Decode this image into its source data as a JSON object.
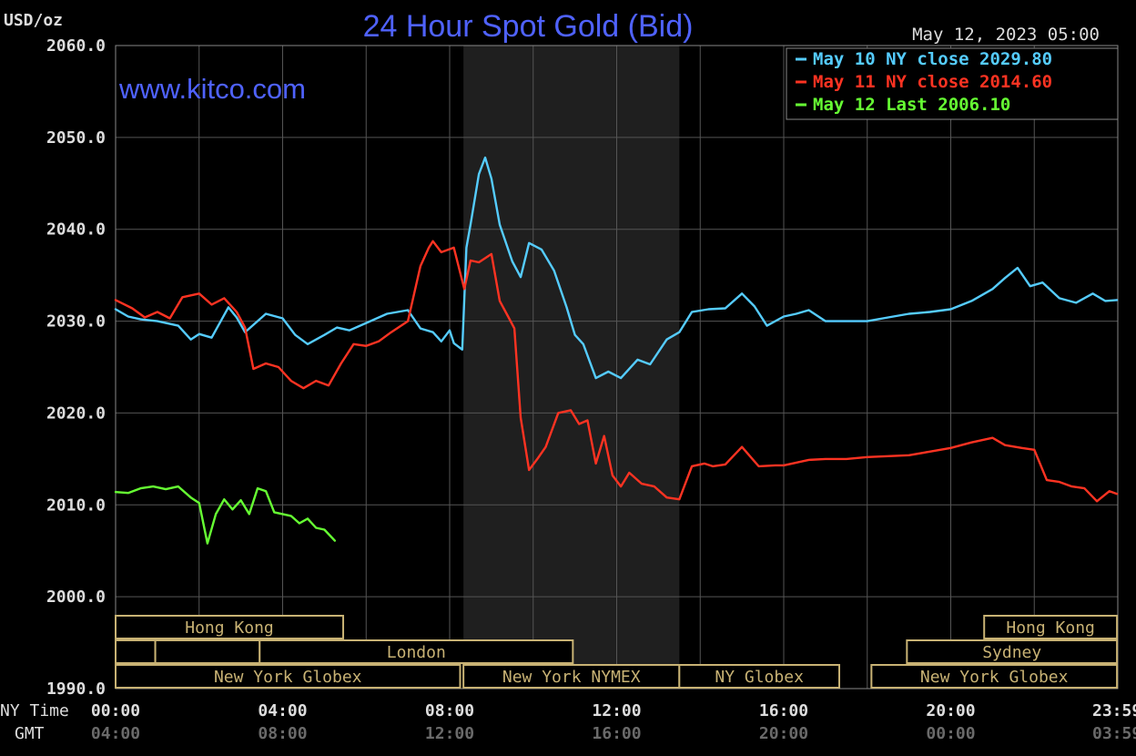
{
  "chart_data": {
    "type": "line",
    "title": "24 Hour Spot Gold (Bid)",
    "watermark": "www.kitco.com",
    "timestamp": "May 12, 2023 05:00",
    "ylabel": "USD/oz",
    "ylim": [
      1990,
      2060
    ],
    "y_ticks": [
      "2060.0",
      "2050.0",
      "2040.0",
      "2030.0",
      "2020.0",
      "2010.0",
      "2000.0",
      "1990.0"
    ],
    "xlim": [
      0,
      24
    ],
    "x_row_labels": [
      "NY Time",
      "GMT"
    ],
    "x_ticks_ny": [
      "00:00",
      "04:00",
      "08:00",
      "12:00",
      "16:00",
      "20:00",
      "23:59"
    ],
    "x_ticks_gmt": [
      "04:00",
      "08:00",
      "12:00",
      "16:00",
      "20:00",
      "00:00",
      "03:59"
    ],
    "x_tick_hours": [
      0,
      4,
      8,
      12,
      16,
      20,
      23.98
    ],
    "grid": true,
    "legend_position": "top-right",
    "shaded_range_hours": [
      8.33,
      13.5
    ],
    "series": [
      {
        "name": "May 10 NY close 2029.80",
        "color": "#55ccff",
        "x": [
          0,
          0.3,
          0.6,
          1.0,
          1.5,
          1.8,
          2.0,
          2.3,
          2.7,
          2.9,
          3.1,
          3.3,
          3.6,
          4.0,
          4.3,
          4.6,
          5.0,
          5.3,
          5.6,
          6.0,
          6.5,
          7.0,
          7.3,
          7.6,
          7.8,
          8.0,
          8.1,
          8.3,
          8.4,
          8.5,
          8.7,
          8.85,
          9.0,
          9.2,
          9.5,
          9.7,
          9.9,
          10.2,
          10.5,
          10.8,
          11.0,
          11.2,
          11.5,
          11.8,
          12.1,
          12.5,
          12.8,
          13.2,
          13.5,
          13.8,
          14.2,
          14.6,
          15.0,
          15.3,
          15.6,
          16.0,
          16.3,
          16.6,
          17.0,
          17.5,
          18.0,
          18.5,
          19.0,
          19.5,
          20.0,
          20.5,
          21.0,
          21.3,
          21.6,
          21.9,
          22.2,
          22.6,
          23.0,
          23.4,
          23.7,
          23.98
        ],
        "values": [
          2031.3,
          2030.5,
          2030.2,
          2030.0,
          2029.5,
          2028.0,
          2028.6,
          2028.2,
          2031.5,
          2030.4,
          2028.8,
          2029.6,
          2030.8,
          2030.3,
          2028.5,
          2027.5,
          2028.5,
          2029.3,
          2029.0,
          2029.8,
          2030.8,
          2031.2,
          2029.2,
          2028.8,
          2027.8,
          2029.0,
          2027.6,
          2026.9,
          2038.0,
          2040.5,
          2046.0,
          2047.8,
          2045.5,
          2040.5,
          2036.5,
          2034.8,
          2038.5,
          2037.8,
          2035.5,
          2031.5,
          2028.5,
          2027.5,
          2023.8,
          2024.5,
          2023.8,
          2025.8,
          2025.3,
          2028.0,
          2028.8,
          2031.0,
          2031.3,
          2031.4,
          2033.0,
          2031.6,
          2029.5,
          2030.5,
          2030.8,
          2031.2,
          2030.0,
          2030.0,
          2030.0,
          2030.4,
          2030.8,
          2031.0,
          2031.3,
          2032.2,
          2033.5,
          2034.7,
          2035.8,
          2033.8,
          2034.2,
          2032.5,
          2032.0,
          2033.0,
          2032.2,
          2032.3
        ]
      },
      {
        "name": "May 11 NY close 2014.60",
        "color": "#ff3322",
        "x": [
          0,
          0.4,
          0.7,
          1.0,
          1.3,
          1.6,
          2.0,
          2.3,
          2.6,
          2.9,
          3.1,
          3.3,
          3.6,
          3.9,
          4.2,
          4.5,
          4.8,
          5.1,
          5.4,
          5.7,
          6.0,
          6.3,
          6.6,
          7.0,
          7.3,
          7.5,
          7.6,
          7.8,
          8.1,
          8.35,
          8.5,
          8.7,
          9.0,
          9.2,
          9.4,
          9.55,
          9.7,
          9.9,
          10.1,
          10.3,
          10.6,
          10.9,
          11.1,
          11.3,
          11.5,
          11.7,
          11.9,
          12.1,
          12.3,
          12.6,
          12.9,
          13.2,
          13.5,
          13.8,
          14.1,
          14.3,
          14.6,
          15.0,
          15.4,
          15.8,
          16.0,
          16.3,
          16.6,
          17.0,
          17.5,
          18.0,
          18.5,
          19.0,
          19.5,
          20.0,
          20.5,
          21.0,
          21.3,
          21.7,
          22.0,
          22.3,
          22.6,
          22.9,
          23.2,
          23.5,
          23.8,
          23.98
        ],
        "values": [
          2032.3,
          2031.4,
          2030.4,
          2031.0,
          2030.3,
          2032.6,
          2033.0,
          2031.8,
          2032.5,
          2031.0,
          2029.3,
          2024.8,
          2025.4,
          2025.0,
          2023.5,
          2022.7,
          2023.5,
          2023.0,
          2025.4,
          2027.5,
          2027.3,
          2027.8,
          2028.8,
          2030.0,
          2036.0,
          2038.0,
          2038.7,
          2037.5,
          2038.0,
          2033.5,
          2036.6,
          2036.4,
          2037.3,
          2032.2,
          2030.5,
          2029.2,
          2019.5,
          2013.8,
          2015.0,
          2016.3,
          2020.0,
          2020.3,
          2018.8,
          2019.2,
          2014.5,
          2017.5,
          2013.2,
          2012.0,
          2013.5,
          2012.3,
          2012.0,
          2010.8,
          2010.6,
          2014.2,
          2014.5,
          2014.2,
          2014.4,
          2016.3,
          2014.2,
          2014.3,
          2014.3,
          2014.6,
          2014.9,
          2015.0,
          2015.0,
          2015.2,
          2015.3,
          2015.4,
          2015.8,
          2016.2,
          2016.8,
          2017.3,
          2016.5,
          2016.2,
          2016.0,
          2012.7,
          2012.5,
          2012.0,
          2011.8,
          2010.4,
          2011.5,
          2011.2
        ]
      },
      {
        "name": "May 12 Last 2006.10",
        "color": "#66ff33",
        "x": [
          0,
          0.3,
          0.6,
          0.9,
          1.2,
          1.5,
          1.8,
          2.0,
          2.2,
          2.4,
          2.6,
          2.8,
          3.0,
          3.2,
          3.4,
          3.6,
          3.8,
          4.0,
          4.2,
          4.4,
          4.6,
          4.8,
          5.0,
          5.25
        ],
        "values": [
          2011.4,
          2011.3,
          2011.8,
          2012.0,
          2011.7,
          2012.0,
          2010.8,
          2010.2,
          2005.8,
          2009.0,
          2010.6,
          2009.5,
          2010.5,
          2009.0,
          2011.8,
          2011.5,
          2009.2,
          2009.0,
          2008.8,
          2008.0,
          2008.5,
          2007.5,
          2007.3,
          2006.1
        ]
      }
    ],
    "sessions": [
      {
        "label": "Hong Kong",
        "row": 0,
        "start": 0,
        "end": 5.45
      },
      {
        "label": "Hong Kong",
        "row": 0,
        "start": 20.8,
        "end": 23.98
      },
      {
        "label": "",
        "row": 1,
        "start": 0,
        "end": 0.95
      },
      {
        "label": "",
        "row": 1,
        "start": 0.95,
        "end": 3.45
      },
      {
        "label": "London",
        "row": 1,
        "start": 3.45,
        "end": 10.95
      },
      {
        "label": "Sydney",
        "row": 1,
        "start": 18.95,
        "end": 23.98
      },
      {
        "label": "New York Globex",
        "row": 2,
        "start": 0,
        "end": 8.25
      },
      {
        "label": "New York NYMEX",
        "row": 2,
        "start": 8.33,
        "end": 13.5
      },
      {
        "label": "NY Globex",
        "row": 2,
        "start": 13.5,
        "end": 17.33
      },
      {
        "label": "New York Globex",
        "row": 2,
        "start": 18.1,
        "end": 23.98
      }
    ]
  }
}
